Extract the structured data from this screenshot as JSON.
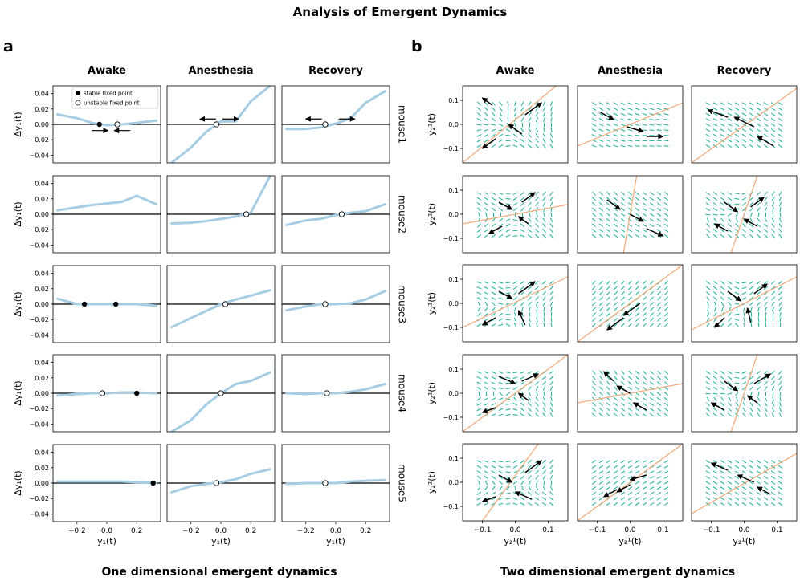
{
  "title": "Analysis of Emergent Dynamics",
  "panel_a": {
    "letter": "a",
    "footer": "One dimensional emergent dynamics",
    "conditions": [
      "Awake",
      "Anesthesia",
      "Recovery"
    ],
    "mice": [
      "mouse1",
      "mouse2",
      "mouse3",
      "mouse4",
      "mouse5"
    ],
    "ylabel": "Δy₁(t)",
    "xlabel": "y₁(t)",
    "xticks": [
      "−0.2",
      "0.0",
      "0.2"
    ],
    "yticks": [
      "0.04",
      "0.02",
      "0.00",
      "−0.02",
      "−0.04"
    ],
    "legend": [
      "stable fixed point",
      "unstable fixed point"
    ]
  },
  "panel_b": {
    "letter": "b",
    "footer": "Two dimensional emergent dynamics",
    "conditions": [
      "Awake",
      "Anesthesia",
      "Recovery"
    ],
    "ylabel": "y₂²(t)",
    "xlabel": "y₂¹(t)",
    "xticks": [
      "−0.1",
      "0.0",
      "0.1"
    ],
    "yticks": [
      "0.1",
      "0.0",
      "−0.1"
    ]
  },
  "colors": {
    "curve": "#a6cde3",
    "quiver": "#2ab59a",
    "line": "#f0a878",
    "axis": "#000000"
  },
  "chart_data": [
    {
      "type": "line",
      "title": "One dimensional emergent dynamics",
      "xlabel": "y₁(t)",
      "ylabel": "Δy₁(t)",
      "xlim": [
        -0.36,
        0.36
      ],
      "ylim": [
        -0.05,
        0.05
      ],
      "xtick_values": [
        -0.2,
        0.0,
        0.2
      ],
      "ytick_values": [
        0.04,
        0.02,
        0.0,
        -0.02,
        -0.04
      ],
      "x": [
        -0.33,
        -0.2,
        -0.1,
        0.0,
        0.1,
        0.2,
        0.33
      ],
      "panels": [
        {
          "mouse": "mouse1",
          "condition": "Awake",
          "y": [
            0.013,
            0.008,
            0.002,
            -0.001,
            0.0,
            0.002,
            0.005
          ],
          "stable": [
            -0.05
          ],
          "unstable": [
            0.07
          ],
          "arrows": [
            {
              "x": -0.1,
              "y": -0.008,
              "dir": 1
            },
            {
              "x": 0.05,
              "y": -0.008,
              "dir": -1
            }
          ]
        },
        {
          "mouse": "mouse1",
          "condition": "Anesthesia",
          "y": [
            -0.05,
            -0.03,
            -0.01,
            0.004,
            0.004,
            0.03,
            0.05
          ],
          "unstable": [
            -0.03
          ],
          "arrows": [
            {
              "x": -0.14,
              "y": 0.007,
              "dir": -1
            },
            {
              "x": 0.01,
              "y": 0.007,
              "dir": 1
            }
          ]
        },
        {
          "mouse": "mouse1",
          "condition": "Recovery",
          "y": [
            -0.006,
            -0.006,
            -0.004,
            0.001,
            0.008,
            0.028,
            0.043
          ],
          "unstable": [
            -0.07
          ],
          "arrows": [
            {
              "x": -0.2,
              "y": 0.007,
              "dir": -1
            },
            {
              "x": 0.02,
              "y": 0.007,
              "dir": 1
            }
          ]
        },
        {
          "mouse": "mouse2",
          "condition": "Awake",
          "y": [
            0.005,
            0.009,
            0.012,
            0.014,
            0.016,
            0.024,
            0.013
          ],
          "stable": [],
          "unstable": []
        },
        {
          "mouse": "mouse2",
          "condition": "Anesthesia",
          "y": [
            -0.012,
            -0.011,
            -0.009,
            -0.006,
            -0.003,
            0.002,
            0.05
          ],
          "unstable": [
            0.17
          ]
        },
        {
          "mouse": "mouse2",
          "condition": "Recovery",
          "y": [
            -0.014,
            -0.008,
            -0.006,
            -0.001,
            0.002,
            0.004,
            0.013
          ],
          "unstable": [
            0.04
          ]
        },
        {
          "mouse": "mouse3",
          "condition": "Awake",
          "y": [
            0.007,
            0.0,
            0.0,
            0.0,
            0.0,
            0.0,
            -0.002
          ],
          "stable": [
            -0.15,
            0.06
          ],
          "unstable": []
        },
        {
          "mouse": "mouse3",
          "condition": "Anesthesia",
          "y": [
            -0.03,
            -0.018,
            -0.009,
            0.0,
            0.006,
            0.011,
            0.018
          ],
          "unstable": [
            0.03
          ]
        },
        {
          "mouse": "mouse3",
          "condition": "Recovery",
          "y": [
            -0.008,
            -0.003,
            0.0,
            0.0,
            0.001,
            0.006,
            0.017
          ],
          "unstable": [
            -0.07
          ]
        },
        {
          "mouse": "mouse4",
          "condition": "Awake",
          "y": [
            -0.003,
            -0.001,
            0.0,
            0.0,
            0.001,
            0.001,
            0.0
          ],
          "stable": [
            0.2
          ],
          "unstable": [
            -0.03
          ]
        },
        {
          "mouse": "mouse4",
          "condition": "Anesthesia",
          "y": [
            -0.05,
            -0.035,
            -0.015,
            0.0,
            0.012,
            0.016,
            0.027
          ],
          "unstable": [
            0.0
          ]
        },
        {
          "mouse": "mouse4",
          "condition": "Recovery",
          "y": [
            0.0,
            -0.001,
            0.0,
            0.0,
            0.002,
            0.005,
            0.012
          ],
          "unstable": [
            -0.06
          ]
        },
        {
          "mouse": "mouse5",
          "condition": "Awake",
          "y": [
            0.002,
            0.002,
            0.002,
            0.002,
            0.002,
            0.001,
            0.0
          ],
          "stable": [
            0.31
          ],
          "unstable": []
        },
        {
          "mouse": "mouse5",
          "condition": "Anesthesia",
          "y": [
            -0.012,
            -0.004,
            -0.001,
            0.001,
            0.005,
            0.012,
            0.018
          ],
          "unstable": [
            -0.03
          ]
        },
        {
          "mouse": "mouse5",
          "condition": "Recovery",
          "y": [
            -0.001,
            0.0,
            0.0,
            0.0,
            0.002,
            0.003,
            0.004
          ],
          "unstable": [
            -0.07
          ]
        }
      ]
    },
    {
      "type": "quiver",
      "title": "Two dimensional emergent dynamics",
      "xlabel": "y₂¹(t)",
      "ylabel": "y₂²(t)",
      "xlim": [
        -0.16,
        0.16
      ],
      "ylim": [
        -0.16,
        0.16
      ],
      "xtick_values": [
        -0.1,
        0.0,
        0.1
      ],
      "ytick_values": [
        0.1,
        0.0,
        -0.1
      ],
      "panels": [
        {
          "mouse": "mouse1",
          "condition": "Awake",
          "line": [
            [
              -0.16,
              -0.16
            ],
            [
              0.16,
              0.2
            ]
          ],
          "arrows": [
            [
              -0.07,
              0.08,
              -0.03,
              0.03
            ],
            [
              0.03,
              0.04,
              0.05,
              0.05
            ],
            [
              -0.06,
              -0.06,
              -0.04,
              -0.04
            ],
            [
              0.02,
              -0.04,
              -0.04,
              0.04
            ]
          ]
        },
        {
          "mouse": "mouse1",
          "condition": "Anesthesia",
          "line": [
            [
              -0.16,
              -0.09
            ],
            [
              0.16,
              0.09
            ]
          ],
          "arrows": [
            [
              -0.09,
              0.05,
              0.04,
              -0.03
            ],
            [
              -0.01,
              -0.01,
              0.05,
              -0.02
            ],
            [
              0.05,
              -0.05,
              0.05,
              0.0
            ]
          ]
        },
        {
          "mouse": "mouse1",
          "condition": "Recovery",
          "line": [
            [
              -0.16,
              -0.16
            ],
            [
              0.16,
              0.15
            ]
          ],
          "arrows": [
            [
              -0.05,
              0.03,
              -0.06,
              0.03
            ],
            [
              0.03,
              -0.01,
              -0.06,
              0.04
            ],
            [
              0.09,
              -0.09,
              -0.05,
              0.04
            ]
          ]
        },
        {
          "mouse": "mouse2",
          "condition": "Awake",
          "line": [
            [
              -0.16,
              -0.04
            ],
            [
              0.16,
              0.04
            ]
          ],
          "arrows": [
            [
              -0.05,
              0.05,
              0.04,
              -0.03
            ],
            [
              0.02,
              0.05,
              0.04,
              0.04
            ],
            [
              -0.04,
              -0.05,
              -0.04,
              -0.03
            ],
            [
              0.04,
              -0.04,
              -0.03,
              0.03
            ]
          ]
        },
        {
          "mouse": "mouse2",
          "condition": "Anesthesia",
          "line": [
            [
              -0.02,
              -0.16
            ],
            [
              0.02,
              0.16
            ]
          ],
          "arrows": [
            [
              -0.07,
              0.06,
              0.04,
              -0.04
            ],
            [
              0.0,
              0.0,
              0.04,
              -0.03
            ],
            [
              0.05,
              -0.06,
              0.05,
              -0.03
            ]
          ]
        },
        {
          "mouse": "mouse2",
          "condition": "Recovery",
          "line": [
            [
              -0.04,
              -0.16
            ],
            [
              0.04,
              0.16
            ]
          ],
          "arrows": [
            [
              -0.06,
              0.05,
              0.04,
              -0.04
            ],
            [
              0.02,
              0.03,
              0.04,
              0.04
            ],
            [
              -0.05,
              -0.07,
              -0.04,
              0.03
            ],
            [
              0.04,
              -0.05,
              -0.04,
              0.03
            ]
          ]
        },
        {
          "mouse": "mouse3",
          "condition": "Awake",
          "line": [
            [
              -0.16,
              -0.1
            ],
            [
              0.16,
              0.11
            ]
          ],
          "arrows": [
            [
              -0.05,
              0.05,
              0.04,
              -0.03
            ],
            [
              0.01,
              0.04,
              0.05,
              0.05
            ],
            [
              -0.06,
              -0.06,
              -0.04,
              -0.03
            ],
            [
              0.03,
              -0.09,
              -0.02,
              0.06
            ]
          ]
        },
        {
          "mouse": "mouse3",
          "condition": "Anesthesia",
          "line": [
            [
              -0.16,
              -0.16
            ],
            [
              0.16,
              0.16
            ]
          ],
          "arrows": [
            [
              0.03,
              0.0,
              -0.05,
              -0.05
            ],
            [
              -0.02,
              -0.06,
              -0.05,
              -0.05
            ]
          ]
        },
        {
          "mouse": "mouse3",
          "condition": "Recovery",
          "line": [
            [
              -0.16,
              -0.11
            ],
            [
              0.16,
              0.11
            ]
          ],
          "arrows": [
            [
              -0.05,
              0.05,
              0.04,
              -0.04
            ],
            [
              0.03,
              0.04,
              0.04,
              0.04
            ],
            [
              -0.06,
              -0.06,
              -0.03,
              -0.04
            ],
            [
              0.02,
              -0.08,
              -0.01,
              0.06
            ]
          ]
        },
        {
          "mouse": "mouse4",
          "condition": "Awake",
          "line": [
            [
              -0.16,
              -0.16
            ],
            [
              0.16,
              0.16
            ]
          ],
          "arrows": [
            [
              -0.05,
              0.07,
              0.05,
              -0.03
            ],
            [
              0.02,
              0.05,
              0.05,
              0.03
            ],
            [
              -0.06,
              -0.06,
              -0.04,
              -0.02
            ],
            [
              0.04,
              -0.03,
              -0.03,
              0.03
            ]
          ]
        },
        {
          "mouse": "mouse4",
          "condition": "Anesthesia",
          "line": [
            [
              -0.16,
              -0.04
            ],
            [
              0.16,
              0.04
            ]
          ],
          "arrows": [
            [
              -0.05,
              0.05,
              -0.03,
              0.04
            ],
            [
              0.0,
              0.0,
              -0.04,
              0.03
            ],
            [
              0.05,
              -0.07,
              -0.04,
              0.03
            ]
          ]
        },
        {
          "mouse": "mouse4",
          "condition": "Recovery",
          "line": [
            [
              -0.04,
              -0.16
            ],
            [
              0.04,
              0.16
            ]
          ],
          "arrows": [
            [
              -0.06,
              0.05,
              0.04,
              -0.04
            ],
            [
              0.03,
              0.04,
              0.05,
              0.04
            ],
            [
              -0.06,
              -0.07,
              -0.04,
              0.03
            ],
            [
              0.04,
              -0.04,
              -0.03,
              0.03
            ]
          ]
        },
        {
          "mouse": "mouse5",
          "condition": "Awake",
          "line": [
            [
              -0.1,
              -0.16
            ],
            [
              0.07,
              0.16
            ]
          ],
          "arrows": [
            [
              -0.05,
              0.03,
              0.04,
              -0.03
            ],
            [
              0.03,
              0.04,
              0.05,
              0.05
            ],
            [
              -0.06,
              -0.06,
              -0.04,
              -0.02
            ],
            [
              0.05,
              -0.07,
              -0.05,
              0.03
            ]
          ]
        },
        {
          "mouse": "mouse5",
          "condition": "Anesthesia",
          "line": [
            [
              -0.16,
              -0.16
            ],
            [
              0.16,
              0.16
            ]
          ],
          "arrows": [
            [
              -0.04,
              -0.03,
              -0.04,
              -0.03
            ],
            [
              0.0,
              -0.01,
              -0.04,
              -0.03
            ],
            [
              0.05,
              0.03,
              -0.05,
              -0.02
            ]
          ]
        },
        {
          "mouse": "mouse5",
          "condition": "Recovery",
          "line": [
            [
              -0.16,
              -0.13
            ],
            [
              0.16,
              0.12
            ]
          ],
          "arrows": [
            [
              -0.05,
              0.05,
              -0.05,
              0.03
            ],
            [
              0.03,
              0.0,
              -0.05,
              0.03
            ],
            [
              0.08,
              -0.05,
              -0.04,
              0.03
            ]
          ]
        }
      ]
    }
  ]
}
